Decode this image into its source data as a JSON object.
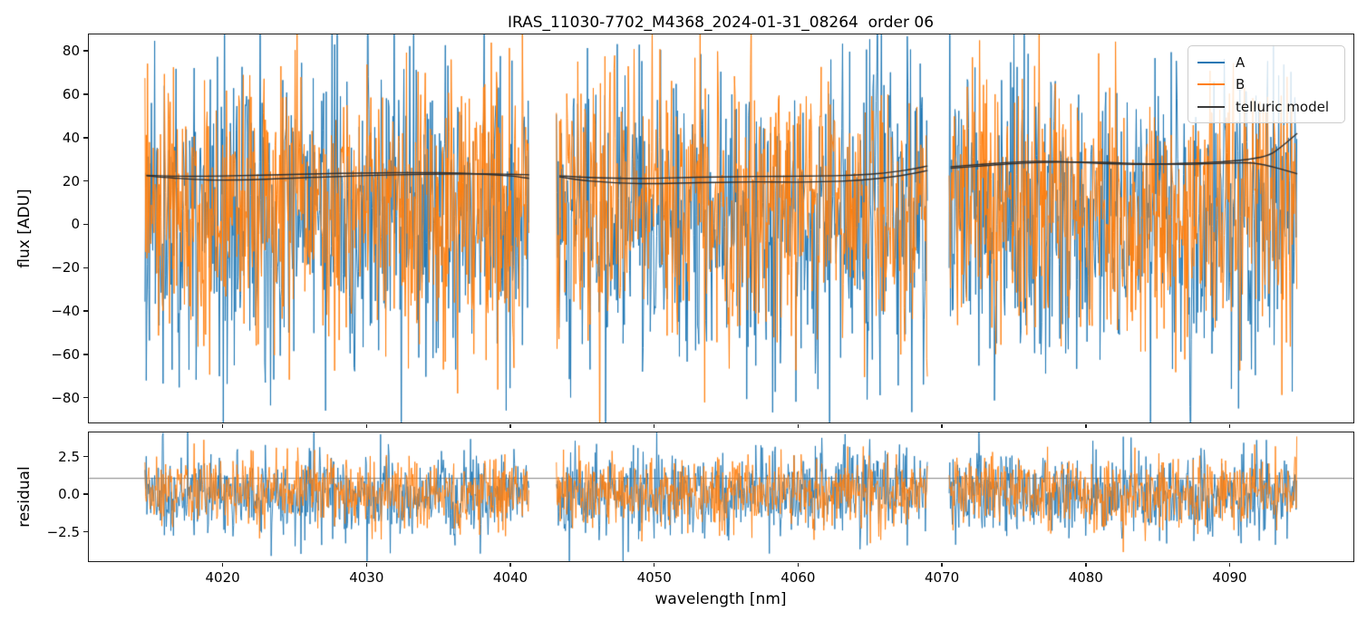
{
  "title": "IRAS_11030-7702_M4368_2024-01-31_08264  order 06",
  "xlabel": "wavelength [nm]",
  "legend": {
    "items": [
      {
        "label": "A",
        "color": "#1f77b4"
      },
      {
        "label": "B",
        "color": "#ff7f0e"
      },
      {
        "label": "telluric model",
        "color": "#3a3a3a"
      }
    ]
  },
  "chart_data": [
    {
      "type": "line",
      "id": "flux-panel",
      "title": "IRAS_11030-7702_M4368_2024-01-31_08264  order 06",
      "ylabel": "flux [ADU]",
      "xlabel": "wavelength [nm]",
      "xlim": [
        4010.7,
        4098.6
      ],
      "ylim": [
        -91.4,
        87.6
      ],
      "grid": false,
      "legend_position": "upper right",
      "xticks": [
        {
          "v": 4020,
          "label": "4020"
        },
        {
          "v": 4030,
          "label": "4030"
        },
        {
          "v": 4040,
          "label": "4040"
        },
        {
          "v": 4050,
          "label": "4050"
        },
        {
          "v": 4060,
          "label": "4060"
        },
        {
          "v": 4070,
          "label": "4070"
        },
        {
          "v": 4080,
          "label": "4080"
        },
        {
          "v": 4090,
          "label": "4090"
        }
      ],
      "yticks": [
        {
          "v": 80,
          "label": "80"
        },
        {
          "v": 60,
          "label": "60"
        },
        {
          "v": 40,
          "label": "40"
        },
        {
          "v": 20,
          "label": "20"
        },
        {
          "v": 0,
          "label": "0"
        },
        {
          "v": -20,
          "label": "−20"
        },
        {
          "v": -40,
          "label": "−40"
        },
        {
          "v": -60,
          "label": "−60"
        },
        {
          "v": -80,
          "label": "−80"
        }
      ],
      "segments": [
        [
          4014.6,
          4041.3
        ],
        [
          4043.2,
          4069.0
        ],
        [
          4070.5,
          4094.7
        ]
      ],
      "series": [
        {
          "name": "A",
          "color": "#1f77b4",
          "style": "noisy-spectrum",
          "approx_mean": 3,
          "approx_std": 34,
          "visible_range": [
            -91,
            88
          ]
        },
        {
          "name": "B",
          "color": "#ff7f0e",
          "style": "noisy-spectrum",
          "approx_mean": 8,
          "approx_std": 30,
          "visible_range": [
            -91,
            88
          ]
        }
      ],
      "model": {
        "name": "telluric model",
        "color": "#2f2f2f",
        "lines": [
          {
            "series": "A",
            "segment": 0,
            "points": [
              [
                4014.7,
                22.6
              ],
              [
                4017,
                22.2
              ],
              [
                4020,
                22.3
              ],
              [
                4024,
                22.9
              ],
              [
                4028,
                23.5
              ],
              [
                4032,
                23.8
              ],
              [
                4035,
                23.8
              ],
              [
                4038,
                23.2
              ],
              [
                4040,
                22.3
              ],
              [
                4041.3,
                21.2
              ]
            ]
          },
          {
            "series": "B",
            "segment": 0,
            "points": [
              [
                4014.7,
                22.4
              ],
              [
                4016.5,
                21.4
              ],
              [
                4019,
                20.5
              ],
              [
                4022,
                20.6
              ],
              [
                4026,
                21.6
              ],
              [
                4030,
                22.5
              ],
              [
                4034,
                23.1
              ],
              [
                4037.5,
                23.3
              ],
              [
                4040,
                23.1
              ],
              [
                4041.3,
                22.9
              ]
            ]
          },
          {
            "series": "A",
            "segment": 1,
            "points": [
              [
                4043.4,
                22.4
              ],
              [
                4045.5,
                21.6
              ],
              [
                4049,
                21.2
              ],
              [
                4053,
                21.7
              ],
              [
                4057,
                22.1
              ],
              [
                4060,
                22.2
              ],
              [
                4063,
                22.5
              ],
              [
                4065.5,
                23.4
              ],
              [
                4067.5,
                25.0
              ],
              [
                4069,
                26.9
              ]
            ]
          },
          {
            "series": "B",
            "segment": 1,
            "points": [
              [
                4043.4,
                21.9
              ],
              [
                4045.5,
                20.0
              ],
              [
                4049,
                18.8
              ],
              [
                4053,
                19.2
              ],
              [
                4057,
                19.6
              ],
              [
                4060,
                19.5
              ],
              [
                4063,
                19.9
              ],
              [
                4065.5,
                21.1
              ],
              [
                4067.5,
                22.9
              ],
              [
                4069,
                24.8
              ]
            ]
          },
          {
            "series": "A",
            "segment": 2,
            "points": [
              [
                4070.6,
                26.6
              ],
              [
                4073,
                27.8
              ],
              [
                4076,
                29.0
              ],
              [
                4078.5,
                28.9
              ],
              [
                4081,
                28.1
              ],
              [
                4084,
                27.7
              ],
              [
                4087,
                28.2
              ],
              [
                4089.5,
                28.9
              ],
              [
                4091.5,
                30.2
              ],
              [
                4093,
                33.0
              ],
              [
                4094.7,
                42.0
              ]
            ]
          },
          {
            "series": "B",
            "segment": 2,
            "points": [
              [
                4070.6,
                25.9
              ],
              [
                4072.5,
                26.8
              ],
              [
                4075,
                28.0
              ],
              [
                4078,
                28.7
              ],
              [
                4081,
                28.6
              ],
              [
                4084,
                28.0
              ],
              [
                4087,
                27.7
              ],
              [
                4089.5,
                28.2
              ],
              [
                4091.5,
                28.3
              ],
              [
                4093,
                26.5
              ],
              [
                4094.7,
                23.3
              ]
            ]
          }
        ]
      }
    },
    {
      "type": "line",
      "id": "residual-panel",
      "ylabel": "residual",
      "xlim": [
        4010.7,
        4098.6
      ],
      "ylim": [
        -4.45,
        4.1
      ],
      "grid": false,
      "yticks": [
        {
          "v": 2.5,
          "label": "2.5"
        },
        {
          "v": 0,
          "label": "0.0"
        },
        {
          "v": -2.5,
          "label": "−2.5"
        }
      ],
      "segments": [
        [
          4014.6,
          4041.3
        ],
        [
          4043.2,
          4069.0
        ],
        [
          4070.5,
          4094.7
        ]
      ],
      "hline": {
        "value": 1.05,
        "color": "#808080"
      },
      "series": [
        {
          "name": "A",
          "color": "#1f77b4",
          "style": "noisy-residual",
          "approx_mean": 0.0,
          "approx_std": 1.4,
          "visible_range": [
            -3.9,
            3.6
          ]
        },
        {
          "name": "B",
          "color": "#ff7f0e",
          "style": "noisy-residual",
          "approx_mean": 0.1,
          "approx_std": 1.15,
          "visible_range": [
            -3.6,
            3.4
          ]
        }
      ]
    }
  ]
}
